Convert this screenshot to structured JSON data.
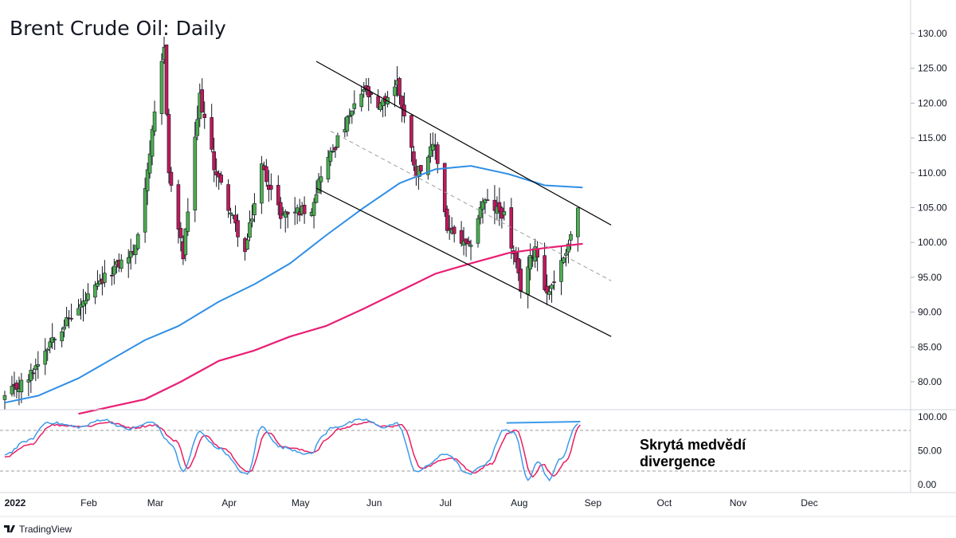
{
  "title": "Brent Crude Oil: Daily",
  "brand": {
    "name": "TradingView",
    "logo": "tradingview-logo"
  },
  "colors": {
    "up": "#4caf50",
    "down": "#c2185b",
    "ma_fast": "#2f8fe6",
    "ma_slow": "#e91e75",
    "stoch_k": "#3d9bea",
    "stoch_d": "#e91e63",
    "channel": "#000000",
    "midline": "#9e9e9e",
    "divergence": "#3d9bea"
  },
  "chart_data": [
    {
      "type": "candlestick",
      "title": "Brent Crude Oil: Daily",
      "x_ticks": [
        "2022",
        "Feb",
        "Mar",
        "Apr",
        "May",
        "Jun",
        "Jul",
        "Aug",
        "Sep",
        "Oct",
        "Nov",
        "Dec"
      ],
      "y_ticks": [
        "130.00",
        "125.00",
        "120.00",
        "115.00",
        "110.00",
        "105.00",
        "100.00",
        "95.00",
        "90.00",
        "85.00",
        "80.00"
      ],
      "ylim": [
        75,
        135
      ],
      "keypoints": [
        {
          "x": "2021-12-31",
          "close": 77.8
        },
        {
          "x": "2022-01-10",
          "close": 80.5
        },
        {
          "x": "2022-01-20",
          "close": 86.5
        },
        {
          "x": "2022-01-31",
          "close": 90.5
        },
        {
          "x": "2022-02-14",
          "close": 96.0
        },
        {
          "x": "2022-02-24",
          "close": 99.0
        },
        {
          "x": "2022-03-02",
          "close": 113.0
        },
        {
          "x": "2022-03-08",
          "close": 128.0
        },
        {
          "x": "2022-03-10",
          "close": 110.0
        },
        {
          "x": "2022-03-16",
          "close": 98.0
        },
        {
          "x": "2022-03-23",
          "close": 121.0
        },
        {
          "x": "2022-03-29",
          "close": 111.0
        },
        {
          "x": "2022-04-11",
          "close": 98.5
        },
        {
          "x": "2022-04-18",
          "close": 111.0
        },
        {
          "x": "2022-04-26",
          "close": 104.0
        },
        {
          "x": "2022-05-09",
          "close": 105.0
        },
        {
          "x": "2022-05-13",
          "close": 110.0
        },
        {
          "x": "2022-05-31",
          "close": 122.0
        },
        {
          "x": "2022-06-06",
          "close": 119.0
        },
        {
          "x": "2022-06-14",
          "close": 123.0
        },
        {
          "x": "2022-06-22",
          "close": 110.0
        },
        {
          "x": "2022-06-30",
          "close": 114.0
        },
        {
          "x": "2022-07-05",
          "close": 102.0
        },
        {
          "x": "2022-07-14",
          "close": 99.0
        },
        {
          "x": "2022-07-20",
          "close": 106.0
        },
        {
          "x": "2022-07-29",
          "close": 104.0
        },
        {
          "x": "2022-08-05",
          "close": 93.5
        },
        {
          "x": "2022-08-11",
          "close": 99.5
        },
        {
          "x": "2022-08-16",
          "close": 92.5
        },
        {
          "x": "2022-08-22",
          "close": 97.0
        },
        {
          "x": "2022-08-26",
          "close": 101.0
        },
        {
          "x": "2022-08-29",
          "close": 105.0
        }
      ],
      "ma_fast": [
        {
          "x": "2021-12-31",
          "y": 77.0
        },
        {
          "x": "2022-01-14",
          "y": 78.0
        },
        {
          "x": "2022-01-31",
          "y": 80.5
        },
        {
          "x": "2022-02-28",
          "y": 86.0
        },
        {
          "x": "2022-03-14",
          "y": 88.0
        },
        {
          "x": "2022-03-31",
          "y": 91.5
        },
        {
          "x": "2022-04-15",
          "y": 94.0
        },
        {
          "x": "2022-04-30",
          "y": 97.0
        },
        {
          "x": "2022-05-15",
          "y": 101.0
        },
        {
          "x": "2022-05-31",
          "y": 105.0
        },
        {
          "x": "2022-06-15",
          "y": 108.5
        },
        {
          "x": "2022-06-30",
          "y": 110.5
        },
        {
          "x": "2022-07-15",
          "y": 111.0
        },
        {
          "x": "2022-07-31",
          "y": 109.8
        },
        {
          "x": "2022-08-15",
          "y": 108.2
        },
        {
          "x": "2022-08-31",
          "y": 107.9
        }
      ],
      "ma_slow": [
        {
          "x": "2022-01-31",
          "y": 75.4
        },
        {
          "x": "2022-02-28",
          "y": 77.5
        },
        {
          "x": "2022-03-15",
          "y": 80.0
        },
        {
          "x": "2022-03-31",
          "y": 83.0
        },
        {
          "x": "2022-04-15",
          "y": 84.5
        },
        {
          "x": "2022-04-30",
          "y": 86.5
        },
        {
          "x": "2022-05-15",
          "y": 88.0
        },
        {
          "x": "2022-05-31",
          "y": 90.5
        },
        {
          "x": "2022-06-15",
          "y": 93.0
        },
        {
          "x": "2022-06-30",
          "y": 95.5
        },
        {
          "x": "2022-07-15",
          "y": 97.0
        },
        {
          "x": "2022-07-31",
          "y": 98.5
        },
        {
          "x": "2022-08-15",
          "y": 99.2
        },
        {
          "x": "2022-08-31",
          "y": 99.8
        }
      ],
      "channel": {
        "upper": [
          {
            "x": "2022-05-11",
            "y": 126.0
          },
          {
            "x": "2022-09-12",
            "y": 102.5
          }
        ],
        "lower": [
          {
            "x": "2022-05-11",
            "y": 107.8
          },
          {
            "x": "2022-09-12",
            "y": 86.5
          }
        ],
        "middle": [
          {
            "x": "2022-05-17",
            "y": 116.0
          },
          {
            "x": "2022-09-12",
            "y": 94.5
          }
        ]
      }
    },
    {
      "type": "line",
      "title": "",
      "y_ticks": [
        "100.00",
        "50.00",
        "0.00"
      ],
      "ylim": [
        0,
        100
      ],
      "levels": [
        80,
        20
      ],
      "k": [
        {
          "x": "2021-12-31",
          "y": 45
        },
        {
          "x": "2022-01-10",
          "y": 65
        },
        {
          "x": "2022-01-18",
          "y": 92
        },
        {
          "x": "2022-02-01",
          "y": 85
        },
        {
          "x": "2022-02-10",
          "y": 96
        },
        {
          "x": "2022-02-21",
          "y": 82
        },
        {
          "x": "2022-03-03",
          "y": 92
        },
        {
          "x": "2022-03-11",
          "y": 60
        },
        {
          "x": "2022-03-16",
          "y": 20
        },
        {
          "x": "2022-03-23",
          "y": 78
        },
        {
          "x": "2022-03-30",
          "y": 55
        },
        {
          "x": "2022-04-12",
          "y": 15
        },
        {
          "x": "2022-04-18",
          "y": 85
        },
        {
          "x": "2022-04-26",
          "y": 55
        },
        {
          "x": "2022-05-09",
          "y": 45
        },
        {
          "x": "2022-05-13",
          "y": 70
        },
        {
          "x": "2022-05-18",
          "y": 85
        },
        {
          "x": "2022-05-31",
          "y": 96
        },
        {
          "x": "2022-06-08",
          "y": 85
        },
        {
          "x": "2022-06-14",
          "y": 90
        },
        {
          "x": "2022-06-22",
          "y": 20
        },
        {
          "x": "2022-07-05",
          "y": 45
        },
        {
          "x": "2022-07-14",
          "y": 15
        },
        {
          "x": "2022-07-21",
          "y": 30
        },
        {
          "x": "2022-07-29",
          "y": 80
        },
        {
          "x": "2022-08-02",
          "y": 78
        },
        {
          "x": "2022-08-08",
          "y": 8
        },
        {
          "x": "2022-08-12",
          "y": 35
        },
        {
          "x": "2022-08-17",
          "y": 8
        },
        {
          "x": "2022-08-22",
          "y": 40
        },
        {
          "x": "2022-08-29",
          "y": 90
        }
      ],
      "d": [
        {
          "x": "2021-12-31",
          "y": 40
        },
        {
          "x": "2022-01-10",
          "y": 58
        },
        {
          "x": "2022-01-20",
          "y": 88
        },
        {
          "x": "2022-02-03",
          "y": 86
        },
        {
          "x": "2022-02-12",
          "y": 92
        },
        {
          "x": "2022-02-23",
          "y": 84
        },
        {
          "x": "2022-03-04",
          "y": 88
        },
        {
          "x": "2022-03-13",
          "y": 65
        },
        {
          "x": "2022-03-18",
          "y": 25
        },
        {
          "x": "2022-03-25",
          "y": 72
        },
        {
          "x": "2022-04-01",
          "y": 55
        },
        {
          "x": "2022-04-13",
          "y": 18
        },
        {
          "x": "2022-04-20",
          "y": 78
        },
        {
          "x": "2022-04-28",
          "y": 55
        },
        {
          "x": "2022-05-10",
          "y": 48
        },
        {
          "x": "2022-05-16",
          "y": 68
        },
        {
          "x": "2022-05-20",
          "y": 82
        },
        {
          "x": "2022-06-01",
          "y": 92
        },
        {
          "x": "2022-06-10",
          "y": 85
        },
        {
          "x": "2022-06-16",
          "y": 88
        },
        {
          "x": "2022-06-24",
          "y": 25
        },
        {
          "x": "2022-07-07",
          "y": 40
        },
        {
          "x": "2022-07-16",
          "y": 18
        },
        {
          "x": "2022-07-23",
          "y": 30
        },
        {
          "x": "2022-07-31",
          "y": 75
        },
        {
          "x": "2022-08-03",
          "y": 80
        },
        {
          "x": "2022-08-10",
          "y": 12
        },
        {
          "x": "2022-08-14",
          "y": 30
        },
        {
          "x": "2022-08-19",
          "y": 12
        },
        {
          "x": "2022-08-24",
          "y": 35
        },
        {
          "x": "2022-08-30",
          "y": 88
        }
      ],
      "divergence_line": [
        {
          "x": "2022-07-30",
          "y": 91
        },
        {
          "x": "2022-08-30",
          "y": 93
        }
      ],
      "annotation": [
        "Skrytá medvědí",
        "divergence"
      ]
    }
  ]
}
